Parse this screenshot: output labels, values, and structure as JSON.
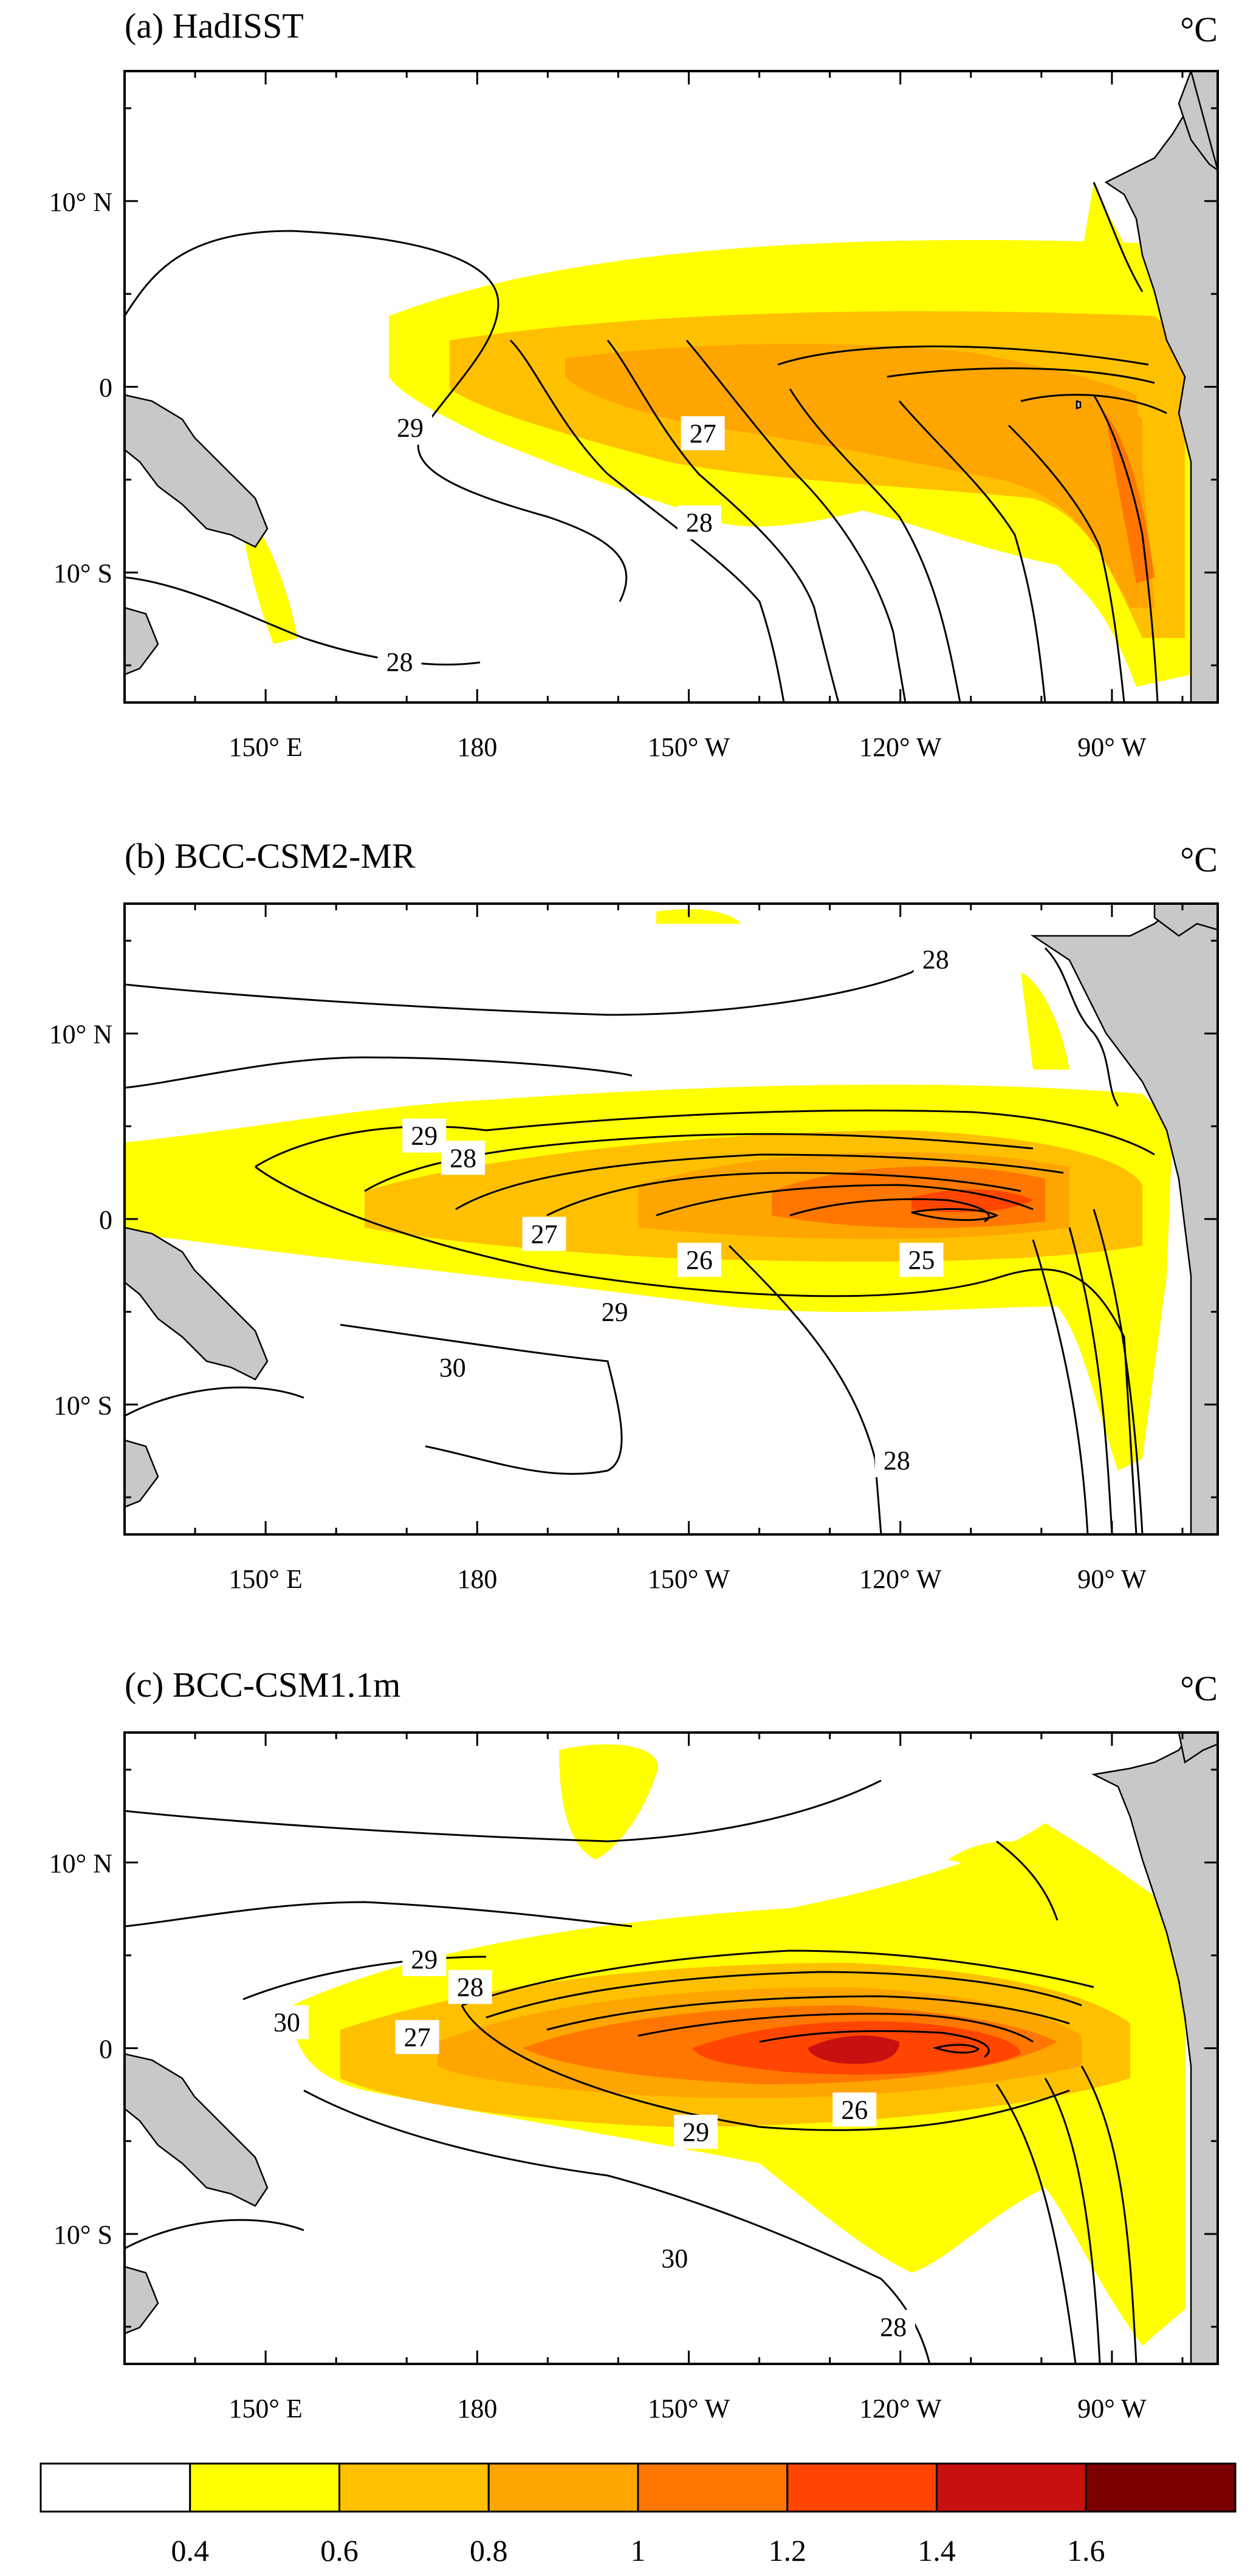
{
  "panels": [
    {
      "title": "(a) HadISST",
      "unit": "°C",
      "contour_labels": [
        {
          "text": "29",
          "lon": 170.5,
          "lat": -2.2
        },
        {
          "text": "27",
          "lon": -148,
          "lat": -2.5
        },
        {
          "text": "28",
          "lon": -148.5,
          "lat": -7.3
        },
        {
          "text": "28",
          "lon": 169,
          "lat": -14.8
        }
      ]
    },
    {
      "title": "(b) BCC-CSM2-MR",
      "unit": "°C",
      "contour_labels": [
        {
          "text": "28",
          "lon": -115,
          "lat": 14
        },
        {
          "text": "29",
          "lon": 172.5,
          "lat": 4.5
        },
        {
          "text": "28",
          "lon": 178,
          "lat": 3.3
        },
        {
          "text": "27",
          "lon": -170.5,
          "lat": -0.8
        },
        {
          "text": "26",
          "lon": -148.5,
          "lat": -2.2
        },
        {
          "text": "25",
          "lon": -117,
          "lat": -2.2
        },
        {
          "text": "29",
          "lon": -160.5,
          "lat": -5
        },
        {
          "text": "30",
          "lon": 176.5,
          "lat": -8
        },
        {
          "text": "28",
          "lon": -120.5,
          "lat": -13
        }
      ]
    },
    {
      "title": "(c) BCC-CSM1.1m",
      "unit": "°C",
      "contour_labels": [
        {
          "text": "29",
          "lon": 172.5,
          "lat": 4.8
        },
        {
          "text": "28",
          "lon": 179,
          "lat": 3.3
        },
        {
          "text": "30",
          "lon": 153,
          "lat": 1.4
        },
        {
          "text": "27",
          "lon": 171.5,
          "lat": 0.6
        },
        {
          "text": "29",
          "lon": -149,
          "lat": -4.5
        },
        {
          "text": "26",
          "lon": -126.5,
          "lat": -3.3
        },
        {
          "text": "30",
          "lon": -152,
          "lat": -11.3
        },
        {
          "text": "28",
          "lon": -121,
          "lat": -15
        }
      ]
    }
  ],
  "x_ticks": [
    "150° E",
    "180",
    "150° W",
    "120° W",
    "90° W"
  ],
  "y_ticks": [
    "10° N",
    "0",
    "10° S"
  ],
  "colorbar": {
    "tick_labels": [
      "0.4",
      "0.6",
      "0.8",
      "1",
      "1.2",
      "1.4",
      "1.6"
    ],
    "colors": [
      "#ffffff",
      "#ffff00",
      "#ffc000",
      "#ffa500",
      "#ff7700",
      "#ff4500",
      "#c81010",
      "#7d0000"
    ]
  },
  "chart_data": {
    "type": "map-contour-filled",
    "region": {
      "lon": [
        130,
        285
      ],
      "lat": [
        -17,
        17
      ]
    },
    "filled_field_levels": [
      0.4,
      0.6,
      0.8,
      1,
      1.2,
      1.4,
      1.6
    ],
    "contour_field_unit": "°C",
    "x_ticks_deg_east": [
      150,
      180,
      210,
      240,
      270
    ],
    "y_ticks_deg": [
      10,
      0,
      -10
    ]
  }
}
